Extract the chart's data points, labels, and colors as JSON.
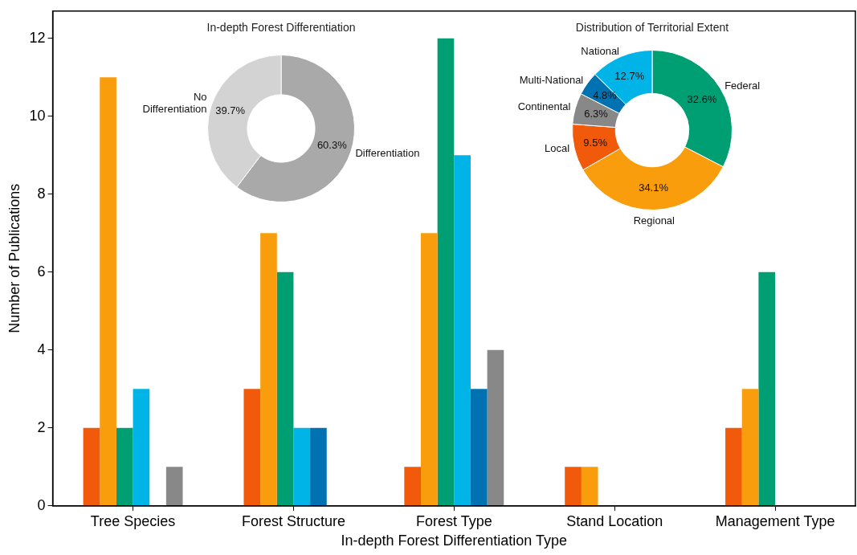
{
  "chart_data": [
    {
      "type": "bar",
      "xlabel": "In-depth Forest Differentiation Type",
      "ylabel": "Number of Publications",
      "categories": [
        "Tree Species",
        "Forest Structure",
        "Forest Type",
        "Stand Location",
        "Management Type"
      ],
      "series": [
        {
          "color": "#f05a0a",
          "values": [
            2,
            3,
            1,
            1,
            2
          ]
        },
        {
          "color": "#f99d0d",
          "values": [
            11,
            7,
            7,
            1,
            3
          ]
        },
        {
          "color": "#009e73",
          "values": [
            2,
            6,
            12,
            0,
            6
          ]
        },
        {
          "color": "#00b4e8",
          "values": [
            3,
            2,
            9,
            0,
            0
          ]
        },
        {
          "color": "#0072b2",
          "values": [
            0,
            2,
            3,
            0,
            0
          ]
        },
        {
          "color": "#888888",
          "values": [
            1,
            0,
            4,
            0,
            0
          ]
        }
      ],
      "ylim": [
        0,
        12.7
      ],
      "yticks": [
        0,
        2,
        4,
        6,
        8,
        10,
        12
      ]
    },
    {
      "type": "donut",
      "title": "In-depth Forest Differentiation",
      "categories": [
        "Differentiation",
        "No Differentiation"
      ],
      "values": [
        60.3,
        39.7
      ],
      "colors": [
        "#a9a9a9",
        "#d3d3d3"
      ],
      "value_labels": [
        "60.3%",
        "39.7%"
      ]
    },
    {
      "type": "donut",
      "title": "Distribution of Territorial Extent",
      "categories": [
        "Federal",
        "Regional",
        "Local",
        "Continental",
        "Multi-National",
        "National"
      ],
      "values": [
        32.6,
        34.1,
        9.5,
        6.3,
        4.8,
        12.7
      ],
      "colors": [
        "#009e73",
        "#f99d0d",
        "#f05a0a",
        "#888888",
        "#0072b2",
        "#00b4e8"
      ],
      "value_labels": [
        "32.6%",
        "34.1%",
        "9.5%",
        "6.3%",
        "4.8%",
        "12.7%"
      ]
    }
  ]
}
